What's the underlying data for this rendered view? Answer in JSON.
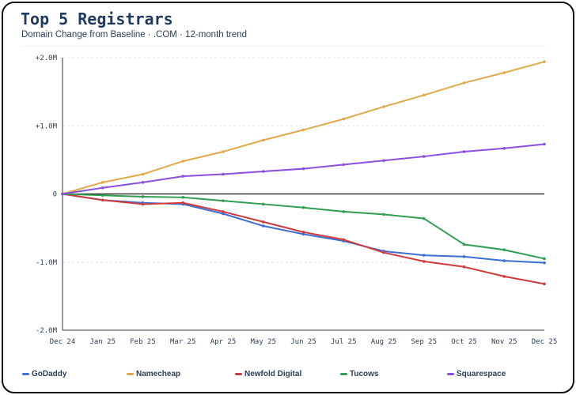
{
  "header": {
    "title": "Top 5 Registrars",
    "subtitle": "Domain Change from Baseline  ·  .COM  ·  12-month trend"
  },
  "chart_data": {
    "type": "line",
    "title": "Top 5 Registrars",
    "subtitle": "Domain Change from Baseline · .COM · 12-month trend",
    "xlabel": "",
    "ylabel": "",
    "x": [
      "Dec 24",
      "Jan 25",
      "Feb 25",
      "Mar 25",
      "Apr 25",
      "May 25",
      "Jun 25",
      "Jul 25",
      "Aug 25",
      "Sep 25",
      "Oct 25",
      "Nov 25",
      "Dec 25"
    ],
    "ylim": [
      -2000000,
      2000000
    ],
    "yticks": [
      2000000,
      1000000,
      0,
      -1000000,
      -2000000
    ],
    "ytick_labels": [
      "+2.0M",
      "+1.0M",
      "0",
      "-1.0M",
      "-2.0M"
    ],
    "grid": true,
    "legend_position": "bottom",
    "series": [
      {
        "name": "GoDaddy",
        "color": "#3b6fd6",
        "values": [
          0,
          -90000,
          -130000,
          -150000,
          -290000,
          -470000,
          -590000,
          -690000,
          -840000,
          -900000,
          -920000,
          -980000,
          -1010000
        ]
      },
      {
        "name": "Namecheap",
        "color": "#e0aa4a",
        "values": [
          0,
          170000,
          290000,
          480000,
          620000,
          790000,
          940000,
          1100000,
          1280000,
          1450000,
          1630000,
          1780000,
          1940000
        ]
      },
      {
        "name": "Newfold Digital",
        "color": "#d03a3a",
        "values": [
          0,
          -90000,
          -150000,
          -130000,
          -260000,
          -410000,
          -560000,
          -670000,
          -860000,
          -990000,
          -1070000,
          -1210000,
          -1320000
        ]
      },
      {
        "name": "Tucows",
        "color": "#2f9e52",
        "values": [
          0,
          -20000,
          -40000,
          -50000,
          -100000,
          -150000,
          -200000,
          -260000,
          -300000,
          -360000,
          -740000,
          -820000,
          -950000
        ]
      },
      {
        "name": "Squarespace",
        "color": "#8a4fe0",
        "values": [
          0,
          90000,
          170000,
          260000,
          290000,
          330000,
          370000,
          430000,
          490000,
          550000,
          620000,
          670000,
          730000
        ]
      }
    ]
  }
}
